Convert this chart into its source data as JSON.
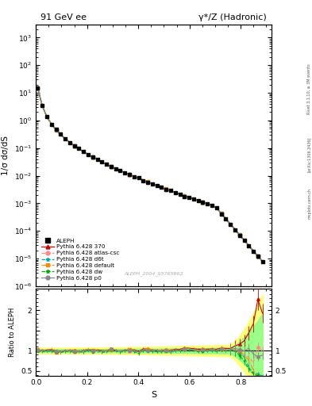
{
  "title_left": "91 GeV ee",
  "title_right": "γ*/Z (Hadronic)",
  "ylabel_main": "1/σ dσ/dS",
  "ylabel_ratio": "Ratio to ALEPH",
  "xlabel": "S",
  "watermark": "ALEPH_2004_S5765862",
  "rivet_label": "Rivet 3.1.10, ≥ 3M events",
  "arxiv_label": "[arXiv:1306.3436]",
  "mcplots_label": "mcplots.cern.ch",
  "ylim_main": [
    1e-06,
    3000.0
  ],
  "xlim": [
    0.0,
    0.92
  ],
  "ylim_ratio": [
    0.38,
    2.55
  ],
  "mc_colors": [
    "#cc0000",
    "#ff8888",
    "#00aaaa",
    "#ff8800",
    "#00aa00",
    "#888888"
  ],
  "mc_markers": [
    "^",
    "o",
    "*",
    "s",
    "*",
    "o"
  ],
  "mc_ls": [
    "-",
    "--",
    "--",
    "-.",
    "--",
    "-"
  ],
  "mc_labels": [
    "Pythia 6.428 370",
    "Pythia 6.428 atlas-csc",
    "Pythia 6.428 d6t",
    "Pythia 6.428 default",
    "Pythia 6.428 dw",
    "Pythia 6.428 p0"
  ],
  "band_yellow": "#ffff66",
  "band_green": "#88ff88",
  "ratio_one_line_color": "black"
}
